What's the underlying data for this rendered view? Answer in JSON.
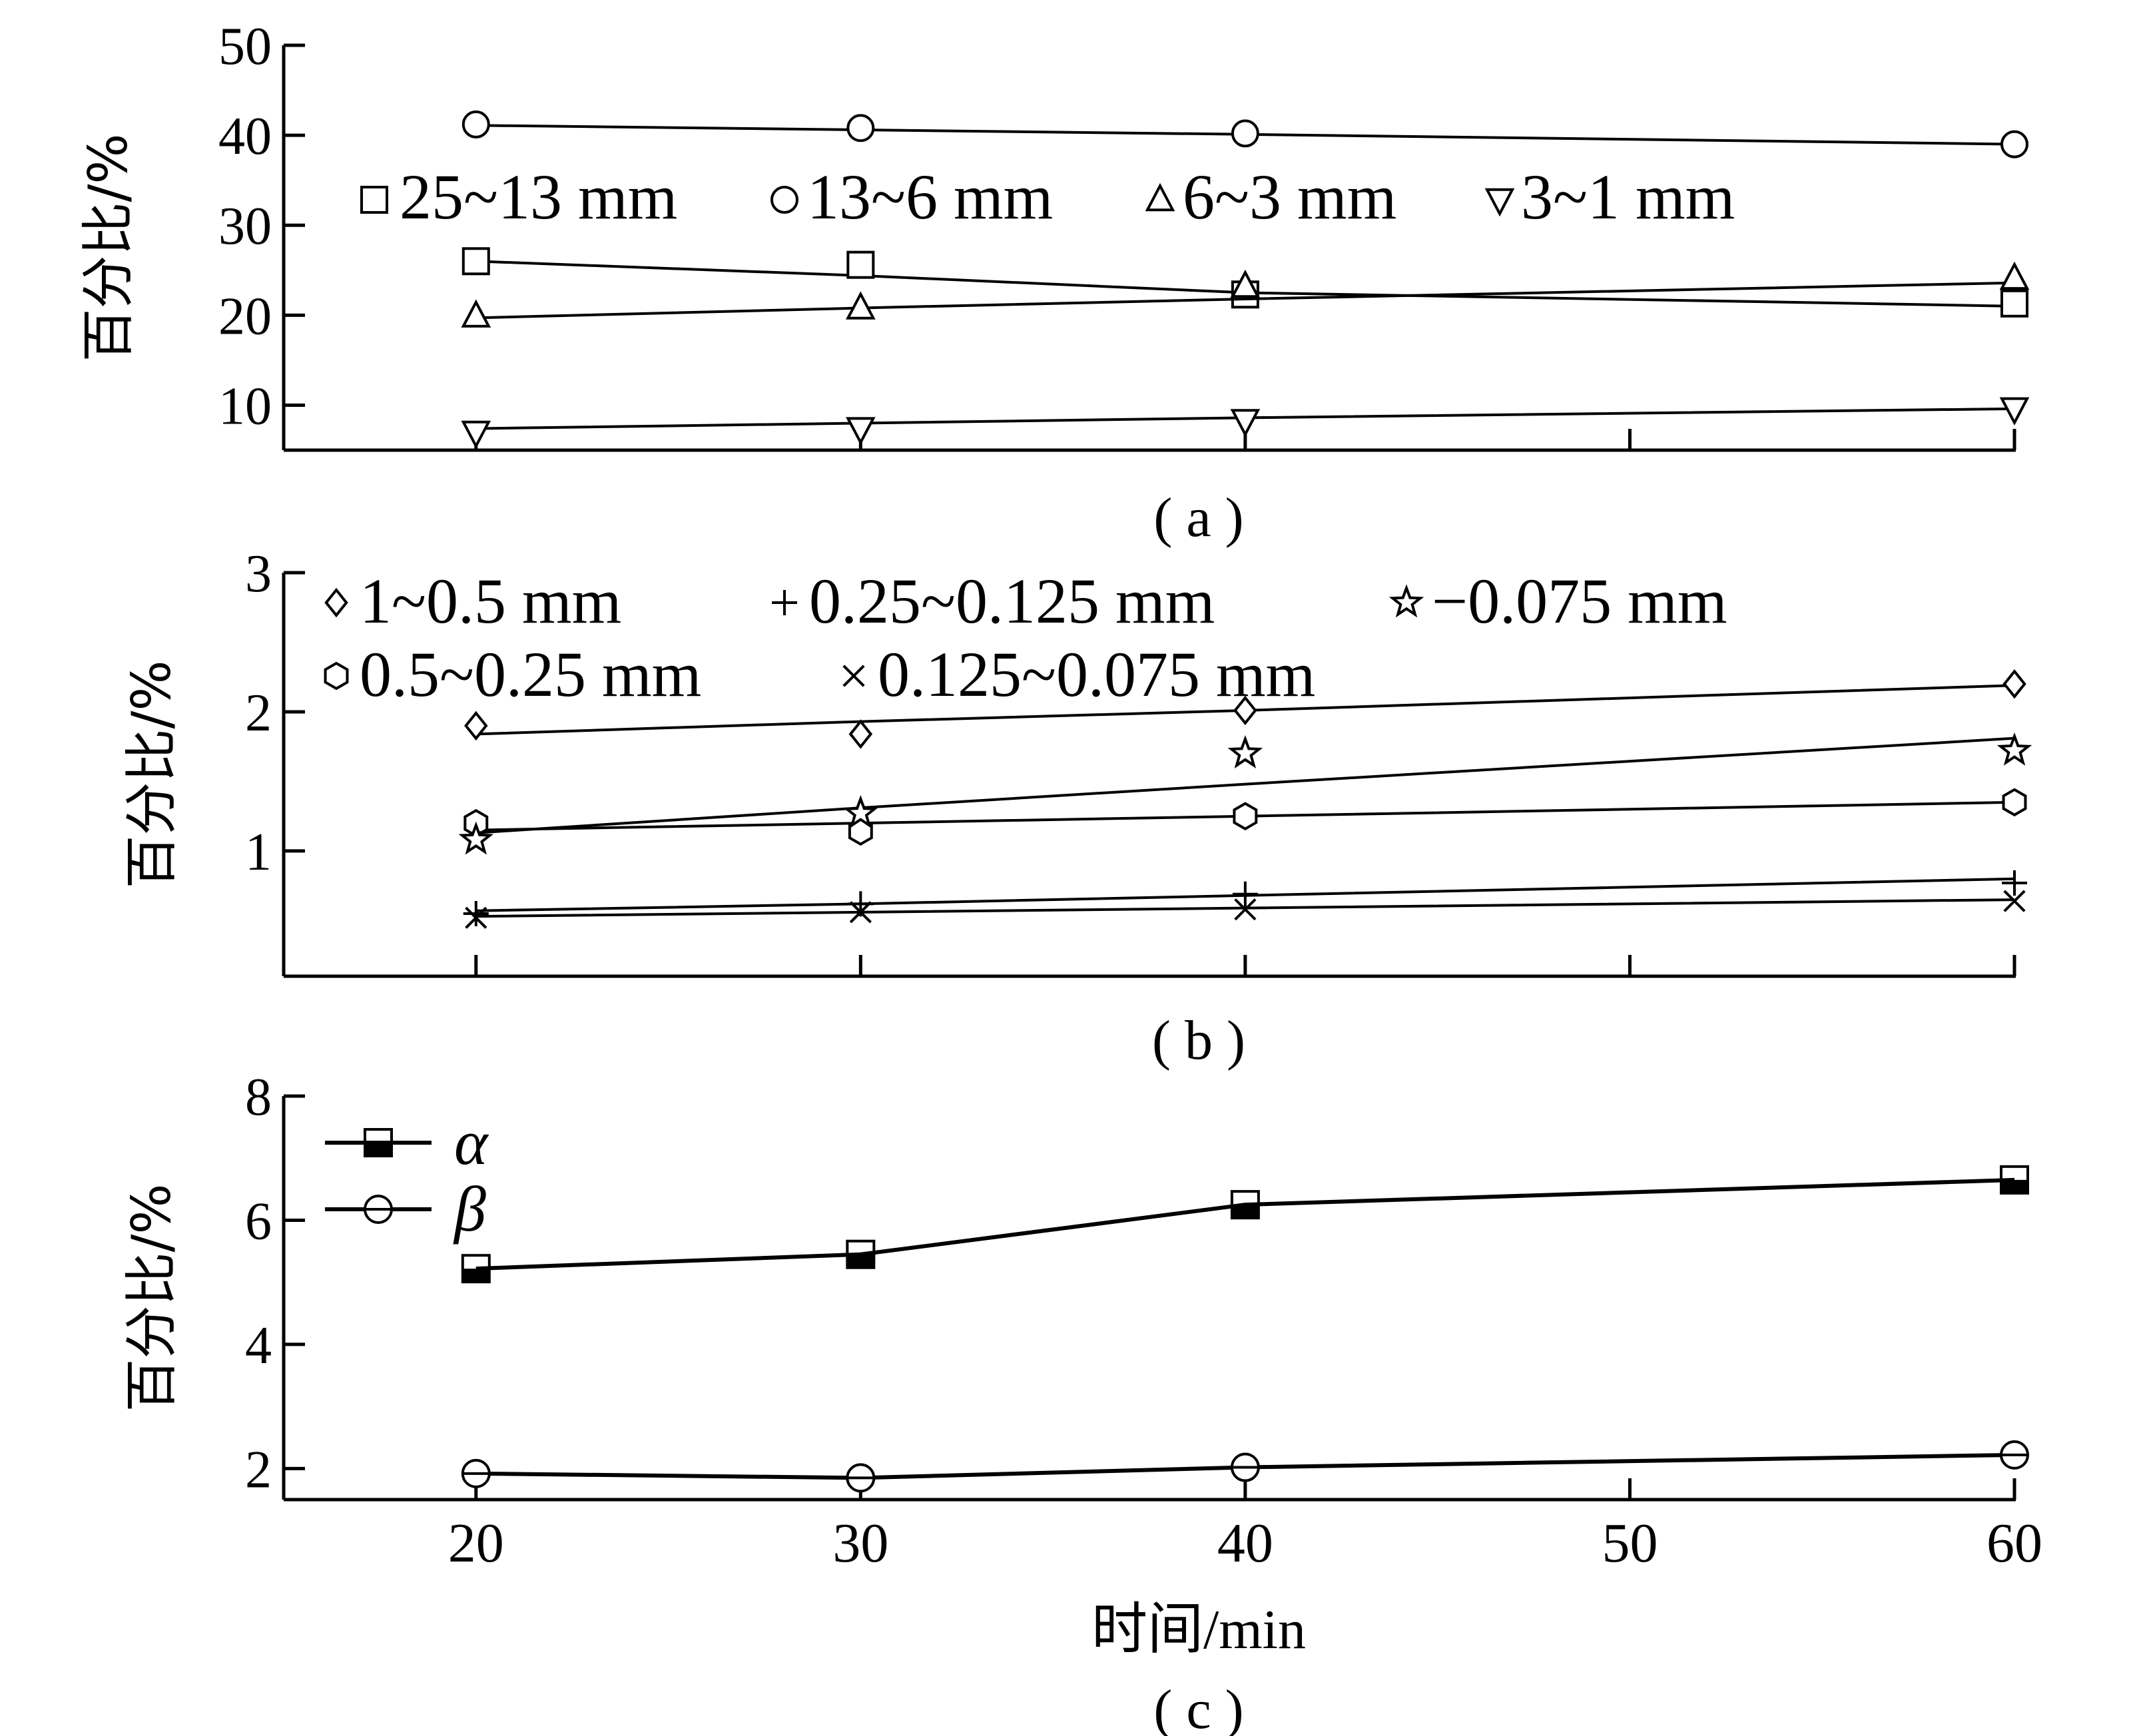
{
  "chart_data": [
    {
      "panel": "a",
      "type": "line",
      "caption": "( a )",
      "ylabel": "百分比/%",
      "ylim": [
        5,
        50
      ],
      "yticks": [
        "10",
        "20",
        "30",
        "40",
        "50"
      ],
      "xlim": [
        15,
        60
      ],
      "legend_position": "top-left",
      "series": [
        {
          "name": "25~13 mm",
          "marker": "square",
          "x": [
            20,
            30,
            40,
            60
          ],
          "values": [
            26.0,
            25.6,
            22.3,
            21.3
          ],
          "fit": [
            26.0,
            24.4,
            22.5,
            21.0
          ]
        },
        {
          "name": "13~6 mm",
          "marker": "circle",
          "x": [
            20,
            30,
            40,
            60
          ],
          "values": [
            41.2,
            40.8,
            40.2,
            39.0
          ],
          "fit": [
            41.1,
            40.6,
            40.1,
            39.0
          ]
        },
        {
          "name": "6~3 mm",
          "marker": "triangle",
          "x": [
            20,
            30,
            40,
            60
          ],
          "values": [
            19.9,
            20.8,
            23.2,
            24.1
          ],
          "fit": [
            19.7,
            20.8,
            21.8,
            23.6
          ]
        },
        {
          "name": "3~1 mm",
          "marker": "triangle-down",
          "x": [
            20,
            30,
            40,
            60
          ],
          "values": [
            7.0,
            7.4,
            8.3,
            9.6
          ],
          "fit": [
            7.4,
            8.0,
            8.6,
            9.6
          ]
        }
      ]
    },
    {
      "panel": "b",
      "type": "line",
      "caption": "( b )",
      "ylabel": "百分比/%",
      "ylim": [
        0.1,
        3
      ],
      "yticks": [
        "1",
        "2",
        "3"
      ],
      "xlim": [
        15,
        60
      ],
      "legend_position": "top-left",
      "series": [
        {
          "name": "1~0.5 mm",
          "marker": "diamond",
          "x": [
            20,
            30,
            40,
            60
          ],
          "values": [
            1.9,
            1.84,
            2.01,
            2.2
          ],
          "fit": [
            1.84,
            1.93,
            2.01,
            2.19
          ]
        },
        {
          "name": "0.5~0.25 mm",
          "marker": "hexagon",
          "x": [
            20,
            30,
            40,
            60
          ],
          "values": [
            1.2,
            1.14,
            1.25,
            1.35
          ],
          "fit": [
            1.15,
            1.2,
            1.25,
            1.35
          ]
        },
        {
          "name": "0.25~0.125 mm",
          "marker": "plus",
          "x": [
            20,
            30,
            40,
            60
          ],
          "values": [
            0.55,
            0.62,
            0.69,
            0.77
          ],
          "fit": [
            0.57,
            0.62,
            0.68,
            0.8
          ]
        },
        {
          "name": "0.125~0.075 mm",
          "marker": "cross",
          "x": [
            20,
            30,
            40,
            60
          ],
          "values": [
            0.52,
            0.56,
            0.58,
            0.64
          ],
          "fit": [
            0.53,
            0.56,
            0.59,
            0.65
          ]
        },
        {
          "name": "−0.075 mm",
          "marker": "star",
          "x": [
            20,
            30,
            40,
            60
          ],
          "values": [
            1.08,
            1.27,
            1.7,
            1.72
          ],
          "fit": [
            1.13,
            1.31,
            1.48,
            1.81
          ]
        }
      ]
    },
    {
      "panel": "c",
      "type": "line",
      "caption": "( c )",
      "ylabel": "百分比/%",
      "xlabel": "时间/min",
      "ylim": [
        1.5,
        8
      ],
      "yticks": [
        "2",
        "4",
        "6",
        "8"
      ],
      "xlim": [
        15,
        60
      ],
      "xticks": [
        "20",
        "30",
        "40",
        "50",
        "60"
      ],
      "legend_position": "top-left",
      "series": [
        {
          "name": "α",
          "marker": "half-filled-square",
          "x": [
            20,
            30,
            40,
            60
          ],
          "values": [
            5.22,
            5.45,
            6.25,
            6.65
          ]
        },
        {
          "name": "β",
          "marker": "half-filled-circle",
          "x": [
            20,
            30,
            40,
            60
          ],
          "values": [
            1.92,
            1.85,
            2.02,
            2.22
          ]
        }
      ]
    }
  ]
}
